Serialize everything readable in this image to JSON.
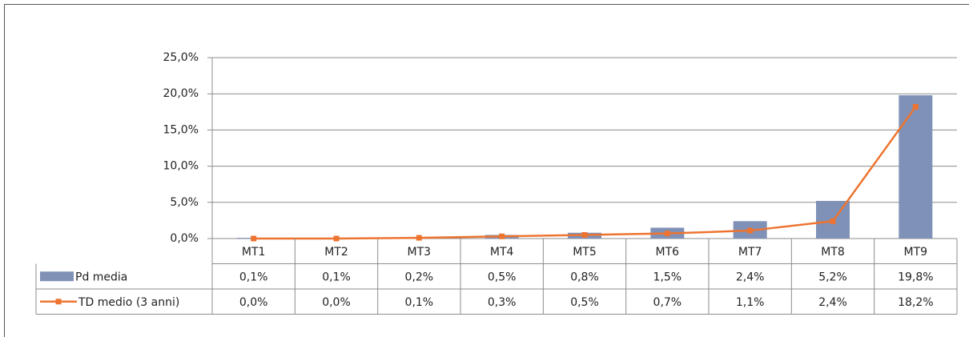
{
  "chart_data": {
    "type": "combo",
    "categories": [
      "MT1",
      "MT2",
      "MT3",
      "MT4",
      "MT5",
      "MT6",
      "MT7",
      "MT8",
      "MT9"
    ],
    "series": [
      {
        "name": "Pd media",
        "type": "bar",
        "color": "#8091b7",
        "values": [
          0.1,
          0.1,
          0.2,
          0.5,
          0.8,
          1.5,
          2.4,
          5.2,
          19.8
        ],
        "value_labels": [
          "0,1%",
          "0,1%",
          "0,2%",
          "0,5%",
          "0,8%",
          "1,5%",
          "2,4%",
          "5,2%",
          "19,8%"
        ]
      },
      {
        "name": "TD medio (3 anni)",
        "type": "line",
        "color": "#ed7430",
        "values": [
          0.0,
          0.0,
          0.1,
          0.3,
          0.5,
          0.7,
          1.1,
          2.4,
          18.2
        ],
        "value_labels": [
          "0,0%",
          "0,0%",
          "0,1%",
          "0,3%",
          "0,5%",
          "0,7%",
          "1,1%",
          "2,4%",
          "18,2%"
        ]
      }
    ],
    "ylim": [
      0,
      25
    ],
    "yticks": [
      {
        "value": 0,
        "label": "0,0%"
      },
      {
        "value": 5,
        "label": "5,0%"
      },
      {
        "value": 10,
        "label": "10,0%"
      },
      {
        "value": 15,
        "label": "15,0%"
      },
      {
        "value": 20,
        "label": "20,0%"
      },
      {
        "value": 25,
        "label": "25,0%"
      }
    ],
    "grid": true,
    "legend": "table"
  }
}
